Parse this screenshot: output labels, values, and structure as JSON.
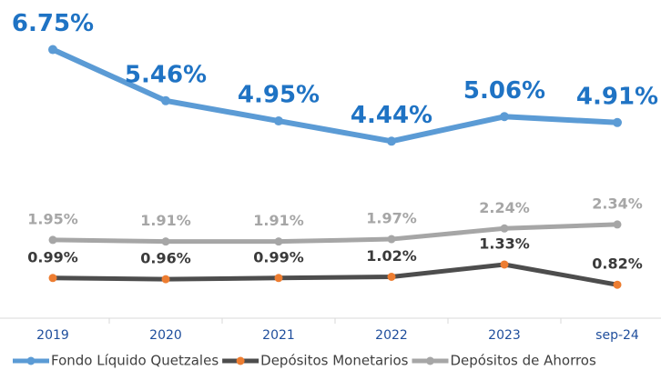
{
  "chart_data": {
    "type": "line",
    "categories": [
      "2019",
      "2020",
      "2021",
      "2022",
      "2023",
      "sep-24"
    ],
    "ylim": [
      0,
      8
    ],
    "series": [
      {
        "name": "Fondo Líquido Quetzales",
        "color": "#5b9bd5",
        "marker_color": "#5b9bd5",
        "label_color": "#1f73c4",
        "values": [
          6.75,
          5.46,
          4.95,
          4.44,
          5.06,
          4.91
        ],
        "value_labels": [
          "6.75%",
          "5.46%",
          "4.95%",
          "4.44%",
          "5.06%",
          "4.91%"
        ]
      },
      {
        "name": "Depósitos Monetarios",
        "color": "#4d4d4d",
        "marker_color": "#ed7d31",
        "label_color": "#3a3a3a",
        "values": [
          0.99,
          0.96,
          0.99,
          1.02,
          1.33,
          0.82
        ],
        "value_labels": [
          "0.99%",
          "0.96%",
          "0.99%",
          "1.02%",
          "1.33%",
          "0.82%"
        ]
      },
      {
        "name": "Depósitos de Ahorros",
        "color": "#a6a6a6",
        "marker_color": "#a6a6a6",
        "label_color": "#a6a6a6",
        "values": [
          1.95,
          1.91,
          1.91,
          1.97,
          2.24,
          2.34
        ],
        "value_labels": [
          "1.95%",
          "1.91%",
          "1.91%",
          "1.97%",
          "2.24%",
          "2.34%"
        ]
      }
    ]
  }
}
